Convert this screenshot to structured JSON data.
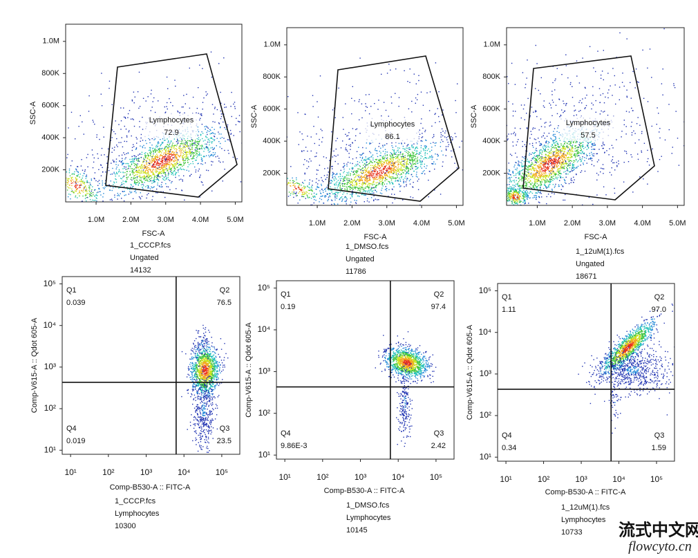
{
  "panels": [
    {
      "xlabel": "FSC-A",
      "ylabel": "SSC-A",
      "xlim": [
        125000,
        5190000
      ],
      "ylim": [
        0,
        1107000
      ],
      "xticks": [
        {
          "value": 1000000,
          "label": "1.0M"
        },
        {
          "value": 2000000,
          "label": "2.0M"
        },
        {
          "value": 3000000,
          "label": "3.0M"
        },
        {
          "value": 4000000,
          "label": "4.0M"
        },
        {
          "value": 5000000,
          "label": "5.0M"
        }
      ],
      "yticks": [
        {
          "value": 200000,
          "label": "200K"
        },
        {
          "value": 400000,
          "label": "400K"
        },
        {
          "value": 600000,
          "label": "600K"
        },
        {
          "value": 800000,
          "label": "800K"
        },
        {
          "value": 1000000,
          "label": "1.0M"
        }
      ],
      "gate": {
        "name": "Lymphocytes",
        "value": 72.9
      },
      "file": "1_CCCP.fcs",
      "population": "Ungated",
      "count": 14132
    },
    {
      "xlabel": "FSC-A",
      "ylabel": "SSC-A",
      "xlim": [
        125000,
        5190000
      ],
      "ylim": [
        0,
        1107000
      ],
      "xticks": [
        {
          "value": 1000000,
          "label": "1.0M"
        },
        {
          "value": 2000000,
          "label": "2.0M"
        },
        {
          "value": 3000000,
          "label": "3.0M"
        },
        {
          "value": 4000000,
          "label": "4.0M"
        },
        {
          "value": 5000000,
          "label": "5.0M"
        }
      ],
      "yticks": [
        {
          "value": 200000,
          "label": "200K"
        },
        {
          "value": 400000,
          "label": "400K"
        },
        {
          "value": 600000,
          "label": "600K"
        },
        {
          "value": 800000,
          "label": "800K"
        },
        {
          "value": 1000000,
          "label": "1.0M"
        }
      ],
      "gate": {
        "name": "Lymphocytes",
        "value": 86.1
      },
      "file": "1_DMSO.fcs",
      "population": "Ungated",
      "count": 11786
    },
    {
      "xlabel": "FSC-A",
      "ylabel": "SSC-A",
      "xlim": [
        125000,
        5190000
      ],
      "ylim": [
        0,
        1107000
      ],
      "xticks": [
        {
          "value": 1000000,
          "label": "1.0M"
        },
        {
          "value": 2000000,
          "label": "2.0M"
        },
        {
          "value": 3000000,
          "label": "3.0M"
        },
        {
          "value": 4000000,
          "label": "4.0M"
        },
        {
          "value": 5000000,
          "label": "5.0M"
        }
      ],
      "yticks": [
        {
          "value": 200000,
          "label": "200K"
        },
        {
          "value": 400000,
          "label": "400K"
        },
        {
          "value": 600000,
          "label": "600K"
        },
        {
          "value": 800000,
          "label": "800K"
        },
        {
          "value": 1000000,
          "label": "1.0M"
        }
      ],
      "gate": {
        "name": "Lymphocytes",
        "value": 57.5
      },
      "file": "1_12uM(1).fcs",
      "population": "Ungated",
      "count": 18671
    },
    {
      "xlabel": "Comp-B530-A :: FITC-A",
      "ylabel": "Comp-V615-A :: Qdot 605-A",
      "log": true,
      "xlim": [
        6,
        300000
      ],
      "ylim": [
        8,
        150000
      ],
      "xticks": [
        {
          "value": 10,
          "label": "10¹"
        },
        {
          "value": 100,
          "label": "10²"
        },
        {
          "value": 1000,
          "label": "10³"
        },
        {
          "value": 10000,
          "label": "10⁴"
        },
        {
          "value": 100000,
          "label": "10⁵"
        }
      ],
      "yticks": [
        {
          "value": 10,
          "label": "10¹"
        },
        {
          "value": 100,
          "label": "10²"
        },
        {
          "value": 1000,
          "label": "10³"
        },
        {
          "value": 10000,
          "label": "10⁴"
        },
        {
          "value": 100000,
          "label": "10⁵"
        }
      ],
      "quadrant_x": 6200,
      "quadrant_y": 430,
      "quadrants": [
        {
          "name": "Q1",
          "value": 0.039
        },
        {
          "name": "Q2",
          "value": 76.5
        },
        {
          "name": "Q3",
          "value": 23.5
        },
        {
          "name": "Q4",
          "value": 0.019
        }
      ],
      "file": "1_CCCP.fcs",
      "population": "Lymphocytes",
      "count": 10300
    },
    {
      "xlabel": "Comp-B530-A :: FITC-A",
      "ylabel": "Comp-V615-A :: Qdot 605-A",
      "log": true,
      "xlim": [
        6,
        300000
      ],
      "ylim": [
        8,
        150000
      ],
      "xticks": [
        {
          "value": 10,
          "label": "10¹"
        },
        {
          "value": 100,
          "label": "10²"
        },
        {
          "value": 1000,
          "label": "10³"
        },
        {
          "value": 10000,
          "label": "10⁴"
        },
        {
          "value": 100000,
          "label": "10⁵"
        }
      ],
      "yticks": [
        {
          "value": 10,
          "label": "10¹"
        },
        {
          "value": 100,
          "label": "10²"
        },
        {
          "value": 1000,
          "label": "10³"
        },
        {
          "value": 10000,
          "label": "10⁴"
        },
        {
          "value": 100000,
          "label": "10⁵"
        }
      ],
      "quadrant_x": 6200,
      "quadrant_y": 430,
      "quadrants": [
        {
          "name": "Q1",
          "value": 0.19
        },
        {
          "name": "Q2",
          "value": 97.4
        },
        {
          "name": "Q3",
          "value": 2.42
        },
        {
          "name": "Q4",
          "value": 0.00986,
          "label": "9.86E-3"
        }
      ],
      "file": "1_DMSO.fcs",
      "population": "Lymphocytes",
      "count": 10145
    },
    {
      "xlabel": "Comp-B530-A :: FITC-A",
      "ylabel": "Comp-V615-A :: Qdot 605-A",
      "log": true,
      "xlim": [
        6,
        300000
      ],
      "ylim": [
        8,
        150000
      ],
      "xticks": [
        {
          "value": 10,
          "label": "10¹"
        },
        {
          "value": 100,
          "label": "10²"
        },
        {
          "value": 1000,
          "label": "10³"
        },
        {
          "value": 10000,
          "label": "10⁴"
        },
        {
          "value": 100000,
          "label": "10⁵"
        }
      ],
      "yticks": [
        {
          "value": 10,
          "label": "10¹"
        },
        {
          "value": 100,
          "label": "10²"
        },
        {
          "value": 1000,
          "label": "10³"
        },
        {
          "value": 10000,
          "label": "10⁴"
        },
        {
          "value": 100000,
          "label": "10⁵"
        }
      ],
      "quadrant_x": 6200,
      "quadrant_y": 430,
      "quadrants": [
        {
          "name": "Q1",
          "value": 1.11
        },
        {
          "name": "Q2",
          "value": 97,
          "label": "97.0"
        },
        {
          "name": "Q3",
          "value": 1.59
        },
        {
          "name": "Q4",
          "value": 0.34
        }
      ],
      "file": "1_12uM(1).fcs",
      "population": "Lymphocytes",
      "count": 10733
    }
  ],
  "watermark": {
    "title": "流式中文网",
    "url": "flowcyto.cn"
  }
}
